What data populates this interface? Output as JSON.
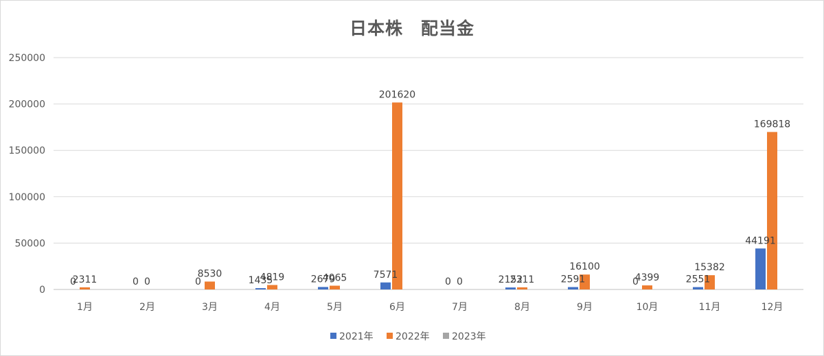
{
  "chart_data": {
    "type": "bar",
    "title": "日本株　配当金",
    "categories": [
      "1月",
      "2月",
      "3月",
      "4月",
      "5月",
      "6月",
      "7月",
      "8月",
      "9月",
      "10月",
      "11月",
      "12月"
    ],
    "series": [
      {
        "name": "2021年",
        "color": "#4472c4",
        "values": [
          0,
          0,
          0,
          1435,
          2679,
          7571,
          0,
          2152,
          2591,
          0,
          2551,
          44191
        ],
        "labels": [
          "0",
          "0",
          "0",
          "1435",
          "2679",
          "7571",
          "0",
          "2152",
          "2591",
          "0",
          "2551",
          "44191"
        ]
      },
      {
        "name": "2022年",
        "color": "#ed7d31",
        "values": [
          2311,
          0,
          8530,
          4819,
          4065,
          201620,
          0,
          2311,
          16100,
          4399,
          15382,
          169818
        ],
        "labels": [
          "2311",
          "0",
          "8530",
          "4819",
          "4065",
          "201620",
          "0",
          "2311",
          "16100",
          "4399",
          "15382",
          "169818"
        ]
      },
      {
        "name": "2023年",
        "color": "#a5a5a5",
        "values": [
          null,
          null,
          null,
          null,
          null,
          null,
          null,
          null,
          null,
          null,
          null,
          null
        ],
        "labels": [
          "",
          "",
          "",
          "",
          "",
          "",
          "",
          "",
          "",
          "",
          "",
          ""
        ]
      }
    ],
    "ylim": [
      0,
      250000
    ],
    "yticks": [
      "0",
      "50000",
      "100000",
      "150000",
      "200000",
      "250000"
    ],
    "grid": true,
    "legend_position": "bottom"
  }
}
